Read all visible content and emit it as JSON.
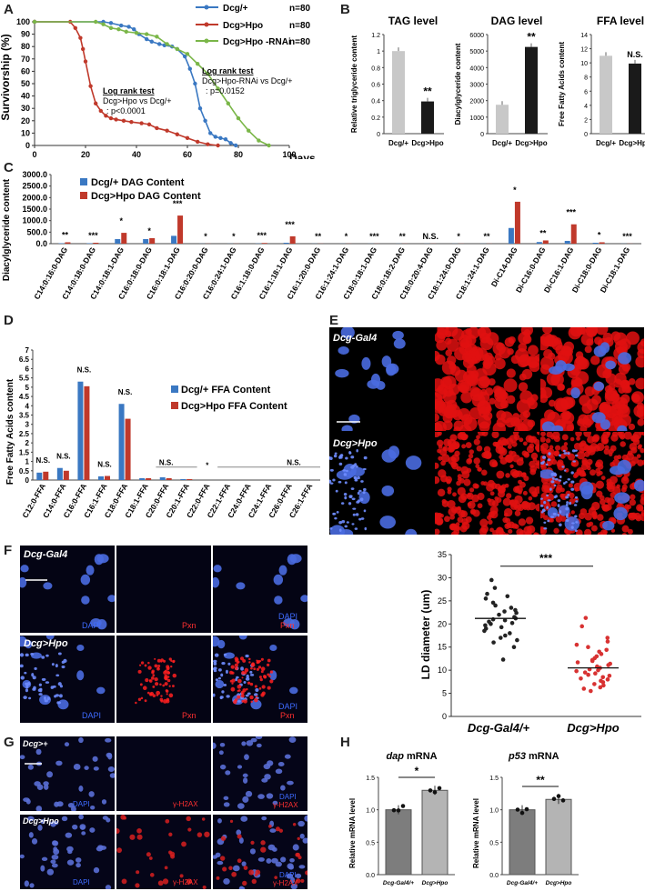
{
  "panels": {
    "a": "A",
    "b": "B",
    "c": "C",
    "d": "D",
    "e": "E",
    "f": "F",
    "g": "G",
    "h": "H"
  },
  "colors": {
    "blue": "#3a78c2",
    "red": "#c0392b",
    "green": "#7ab648",
    "gray": "#c8c8c8",
    "black": "#1a1a1a",
    "nucleus": "#4a6be0",
    "lipid": "#e01010",
    "darkgray": "#808080"
  },
  "survival": {
    "ylabel": "Survivorship (%)",
    "xlabel": "Days",
    "yticks": [
      "0",
      "10",
      "20",
      "30",
      "40",
      "50",
      "60",
      "70",
      "80",
      "90",
      "100"
    ],
    "xticks": [
      "0",
      "20",
      "40",
      "60",
      "80",
      "100"
    ],
    "legend": [
      {
        "name": "Dcg/+",
        "n": "n=80"
      },
      {
        "name": "Dcg>Hpo",
        "n": "n=80"
      },
      {
        "name": "Dcg>Hpo -RNAi",
        "n": "n=80"
      }
    ],
    "test1": {
      "title": "Log rank test",
      "line1": "Dcg>Hpo vs Dcg/+",
      "line2": ": p<0.0001"
    },
    "test2": {
      "title": "Log rank test",
      "line1": "Dcg>Hpo-RNAi vs Dcg/+",
      "line2": ": p=0.0152"
    }
  },
  "chart_data": [
    {
      "type": "line",
      "panel": "A",
      "xlabel": "Days",
      "ylabel": "Survivorship (%)",
      "xlim": [
        0,
        100
      ],
      "ylim": [
        0,
        100
      ],
      "series": [
        {
          "name": "Dcg/+",
          "x": [
            0,
            27,
            30,
            34,
            37,
            39,
            41,
            44,
            46,
            49,
            51,
            54,
            56,
            59,
            61,
            63,
            65,
            67,
            69,
            71,
            73,
            75,
            77,
            79
          ],
          "y": [
            100,
            100,
            99,
            97,
            96,
            94,
            90,
            86,
            84,
            82,
            81,
            80,
            78,
            72,
            62,
            50,
            30,
            20,
            10,
            7,
            6,
            5,
            2,
            0
          ]
        },
        {
          "name": "Dcg>Hpo",
          "x": [
            0,
            14,
            16,
            18,
            19,
            20,
            22,
            24,
            26,
            28,
            30,
            32,
            35,
            38,
            42,
            45,
            48,
            52,
            56,
            60,
            64,
            68,
            72
          ],
          "y": [
            100,
            100,
            95,
            87,
            78,
            68,
            48,
            34,
            28,
            24,
            22,
            21,
            20,
            19,
            18,
            17,
            14,
            12,
            9,
            6,
            3,
            1,
            0
          ]
        },
        {
          "name": "Dcg>Hpo -RNAi",
          "x": [
            0,
            24,
            27,
            30,
            33,
            36,
            40,
            44,
            48,
            52,
            56,
            60,
            64,
            68,
            72,
            76,
            80,
            84,
            88,
            92
          ],
          "y": [
            100,
            100,
            98,
            95,
            94,
            92,
            91,
            90,
            88,
            82,
            78,
            74,
            66,
            58,
            46,
            34,
            22,
            12,
            4,
            0
          ]
        }
      ]
    },
    {
      "type": "bar",
      "panel": "B1",
      "title": "TAG level",
      "ylabel": "Relative triglyceride content",
      "categories": [
        "Dcg/+",
        "Dcg>Hpo"
      ],
      "values": [
        1.0,
        0.39
      ],
      "ylim": [
        0,
        1.2
      ],
      "yticks": [
        "0",
        "0.2",
        "0.4",
        "0.6",
        "0.8",
        "1",
        "1.2"
      ],
      "sig": [
        "",
        "**"
      ]
    },
    {
      "type": "bar",
      "panel": "B2",
      "title": "DAG level",
      "ylabel": "Diacylglyceride content",
      "categories": [
        "Dcg/+",
        "Dcg>Hpo"
      ],
      "values": [
        1750,
        5250
      ],
      "ylim": [
        0,
        6000
      ],
      "yticks": [
        "0",
        "1000",
        "2000",
        "3000",
        "4000",
        "5000",
        "6000"
      ],
      "sig": [
        "",
        "**"
      ]
    },
    {
      "type": "bar",
      "panel": "B3",
      "title": "FFA level",
      "ylabel": "Free Fatty Acids content",
      "categories": [
        "Dcg/+",
        "Dcg>Hpo"
      ],
      "values": [
        11,
        9.9
      ],
      "ylim": [
        0,
        14
      ],
      "yticks": [
        "0",
        "2",
        "4",
        "6",
        "8",
        "10",
        "12",
        "14"
      ],
      "sig": [
        "",
        "N.S."
      ]
    },
    {
      "type": "bar",
      "panel": "C",
      "ylabel": "Diacylglyceride content",
      "ylim": [
        0,
        3000
      ],
      "yticks": [
        "0.0",
        "500.0",
        "1000.0",
        "1500.0",
        "2000.0",
        "2500.0",
        "3000.0"
      ],
      "categories": [
        "C14:0:16:0-DAG",
        "C14:0:18:0-DAG",
        "C14:0:18:1-DAG",
        "C16:0:18:0-DAG",
        "C16:0:18:1-DAG",
        "C16:0:20:0-DAG",
        "C16:0:24:1-DAG",
        "C16:1:18:0-DAG",
        "C16:1:18:1-DAG",
        "C16:1:20:0-DAG",
        "C16:1:24:1-DAG",
        "C18:0:18:1-DAG",
        "C18:0:18:2-DAG",
        "C18:0:20:4-DAG",
        "C18:1:24:0-DAG",
        "C18:1:24:1-DAG",
        "Di-C14-DAG",
        "Di-C16:0-DAG",
        "Di-C16:1-DAG",
        "Di-C18:0-DAG",
        "Di-C18:1-DAG"
      ],
      "series": [
        {
          "name": "Dcg/+  DAG Content",
          "values": [
            20,
            20,
            200,
            200,
            340,
            5,
            5,
            10,
            40,
            5,
            5,
            5,
            5,
            5,
            5,
            5,
            680,
            70,
            120,
            40,
            5
          ]
        },
        {
          "name": "Dcg>Hpo  DAG Content",
          "values": [
            60,
            40,
            470,
            240,
            1220,
            5,
            5,
            30,
            320,
            5,
            5,
            5,
            5,
            5,
            5,
            5,
            1820,
            140,
            840,
            60,
            5
          ]
        }
      ],
      "sig": [
        "**",
        "***",
        "*",
        "*",
        "***",
        "*",
        "*",
        "***",
        "***",
        "**",
        "*",
        "***",
        "**",
        "N.S.",
        "*",
        "**",
        "*",
        "**",
        "***",
        "*",
        "***"
      ]
    },
    {
      "type": "bar",
      "panel": "D",
      "ylabel": "Free Fatty Acids content",
      "ylim": [
        0,
        7
      ],
      "yticks": [
        "0",
        "0.5",
        "1",
        "1.5",
        "2",
        "2.5",
        "3",
        "3.5",
        "4",
        "4.5",
        "5",
        "5.5",
        "6",
        "6.5",
        "7"
      ],
      "categories": [
        "C12:0-FFA",
        "C14:0-FFA",
        "C16:0-FFA",
        "C16:1-FFA",
        "C18:0-FFA",
        "C18:1-FFA",
        "C20:0-FFA",
        "C20:1-FFA",
        "C22:0-FFA",
        "C22:1-FFA",
        "C24:0-FFA",
        "C24:1-FFA",
        "C26:0-FFA",
        "C26:1-FFA"
      ],
      "series": [
        {
          "name": "Dcg/+  FFA Content",
          "values": [
            0.4,
            0.65,
            5.3,
            0.2,
            4.1,
            0.1,
            0.15,
            0.05,
            0,
            0,
            0,
            0,
            0,
            0
          ]
        },
        {
          "name": "Dcg>Hpo  FFA Content",
          "values": [
            0.45,
            0.5,
            5.05,
            0.22,
            3.3,
            0.1,
            0.1,
            0.05,
            0,
            0,
            0,
            0,
            0,
            0
          ]
        }
      ],
      "sig": [
        "N.S.",
        "N.S.",
        "N.S.",
        "N.S.",
        "N.S.",
        "",
        "N.S.",
        "",
        "*",
        "",
        "N.S.",
        "",
        "",
        ""
      ]
    },
    {
      "type": "scatter",
      "panel": "F",
      "ylabel": "LD diameter (um)",
      "ylim": [
        0,
        35
      ],
      "yticks": [
        "0",
        "5",
        "10",
        "15",
        "20",
        "25",
        "30",
        "35"
      ],
      "categories": [
        "Dcg-Gal4/+",
        "Dcg>Hpo"
      ],
      "series": [
        {
          "name": "Dcg-Gal4/+",
          "values": [
            29.5,
            27.8,
            26.5,
            26,
            25.5,
            24.6,
            24,
            23.5,
            23,
            22.7,
            22.4,
            22,
            21.5,
            21.2,
            21,
            20.8,
            20.5,
            20.2,
            20,
            19.7,
            19.3,
            19,
            18.5,
            18,
            17.5,
            17,
            16.5,
            16,
            15,
            12.3
          ],
          "mean": 21.2
        },
        {
          "name": "Dcg>Hpo",
          "values": [
            21.3,
            19.5,
            17,
            16.2,
            15.5,
            15,
            14.4,
            14,
            13.5,
            13,
            12.6,
            12.2,
            12,
            11.7,
            11.4,
            11.1,
            10.8,
            10.5,
            10.2,
            10,
            9.8,
            9.5,
            9.3,
            9,
            8.8,
            8.5,
            8.2,
            8,
            7.7,
            7.4,
            7,
            6.7,
            6.3,
            6,
            5.5
          ],
          "mean": 10.5
        }
      ],
      "sig": "***"
    },
    {
      "type": "bar",
      "panel": "H1",
      "title": "dap mRNA",
      "ylabel": "Relative mRNA level",
      "categories": [
        "Dcg-Gal4/+",
        "Dcg>Hpo"
      ],
      "values": [
        1.0,
        1.3
      ],
      "ylim": [
        0,
        1.5
      ],
      "yticks": [
        "0.0",
        "0.5",
        "1.0",
        "1.5"
      ],
      "sig": "*"
    },
    {
      "type": "bar",
      "panel": "H2",
      "title": "p53 mRNA",
      "ylabel": "Relative mRNA level",
      "categories": [
        "Dcg-Gal4/+",
        "Dcg>Hpo"
      ],
      "values": [
        1.0,
        1.16
      ],
      "ylim": [
        0,
        1.5
      ],
      "yticks": [
        "0.0",
        "0.5",
        "1.0",
        "1.5"
      ],
      "sig": "**"
    }
  ],
  "micro": {
    "e": {
      "row1": "Dcg-Gal4",
      "row2": "Dcg>Hpo"
    },
    "f": {
      "row1": "Dcg-Gal4",
      "row2": "Dcg>Hpo",
      "dapi": "DAPI",
      "pxn": "Pxn"
    },
    "g": {
      "row1": "Dcg>+",
      "row2": "Dcg>Hpo",
      "dapi": "DAPI",
      "h2ax": "γ-H2AX"
    }
  },
  "ld": {
    "ylabel": "LD diameter (um)",
    "cat1": "Dcg-Gal4/+",
    "cat2": "Dcg>Hpo",
    "sig": "***"
  },
  "h": {
    "title1_gene": "dap",
    "title2_gene": "p53",
    "title_suffix": "mRNA",
    "ylabel": "Relative mRNA level",
    "cat1": "Dcg-Gal4/+",
    "cat2": "Dcg>Hpo",
    "sig1": "*",
    "sig2": "**"
  }
}
